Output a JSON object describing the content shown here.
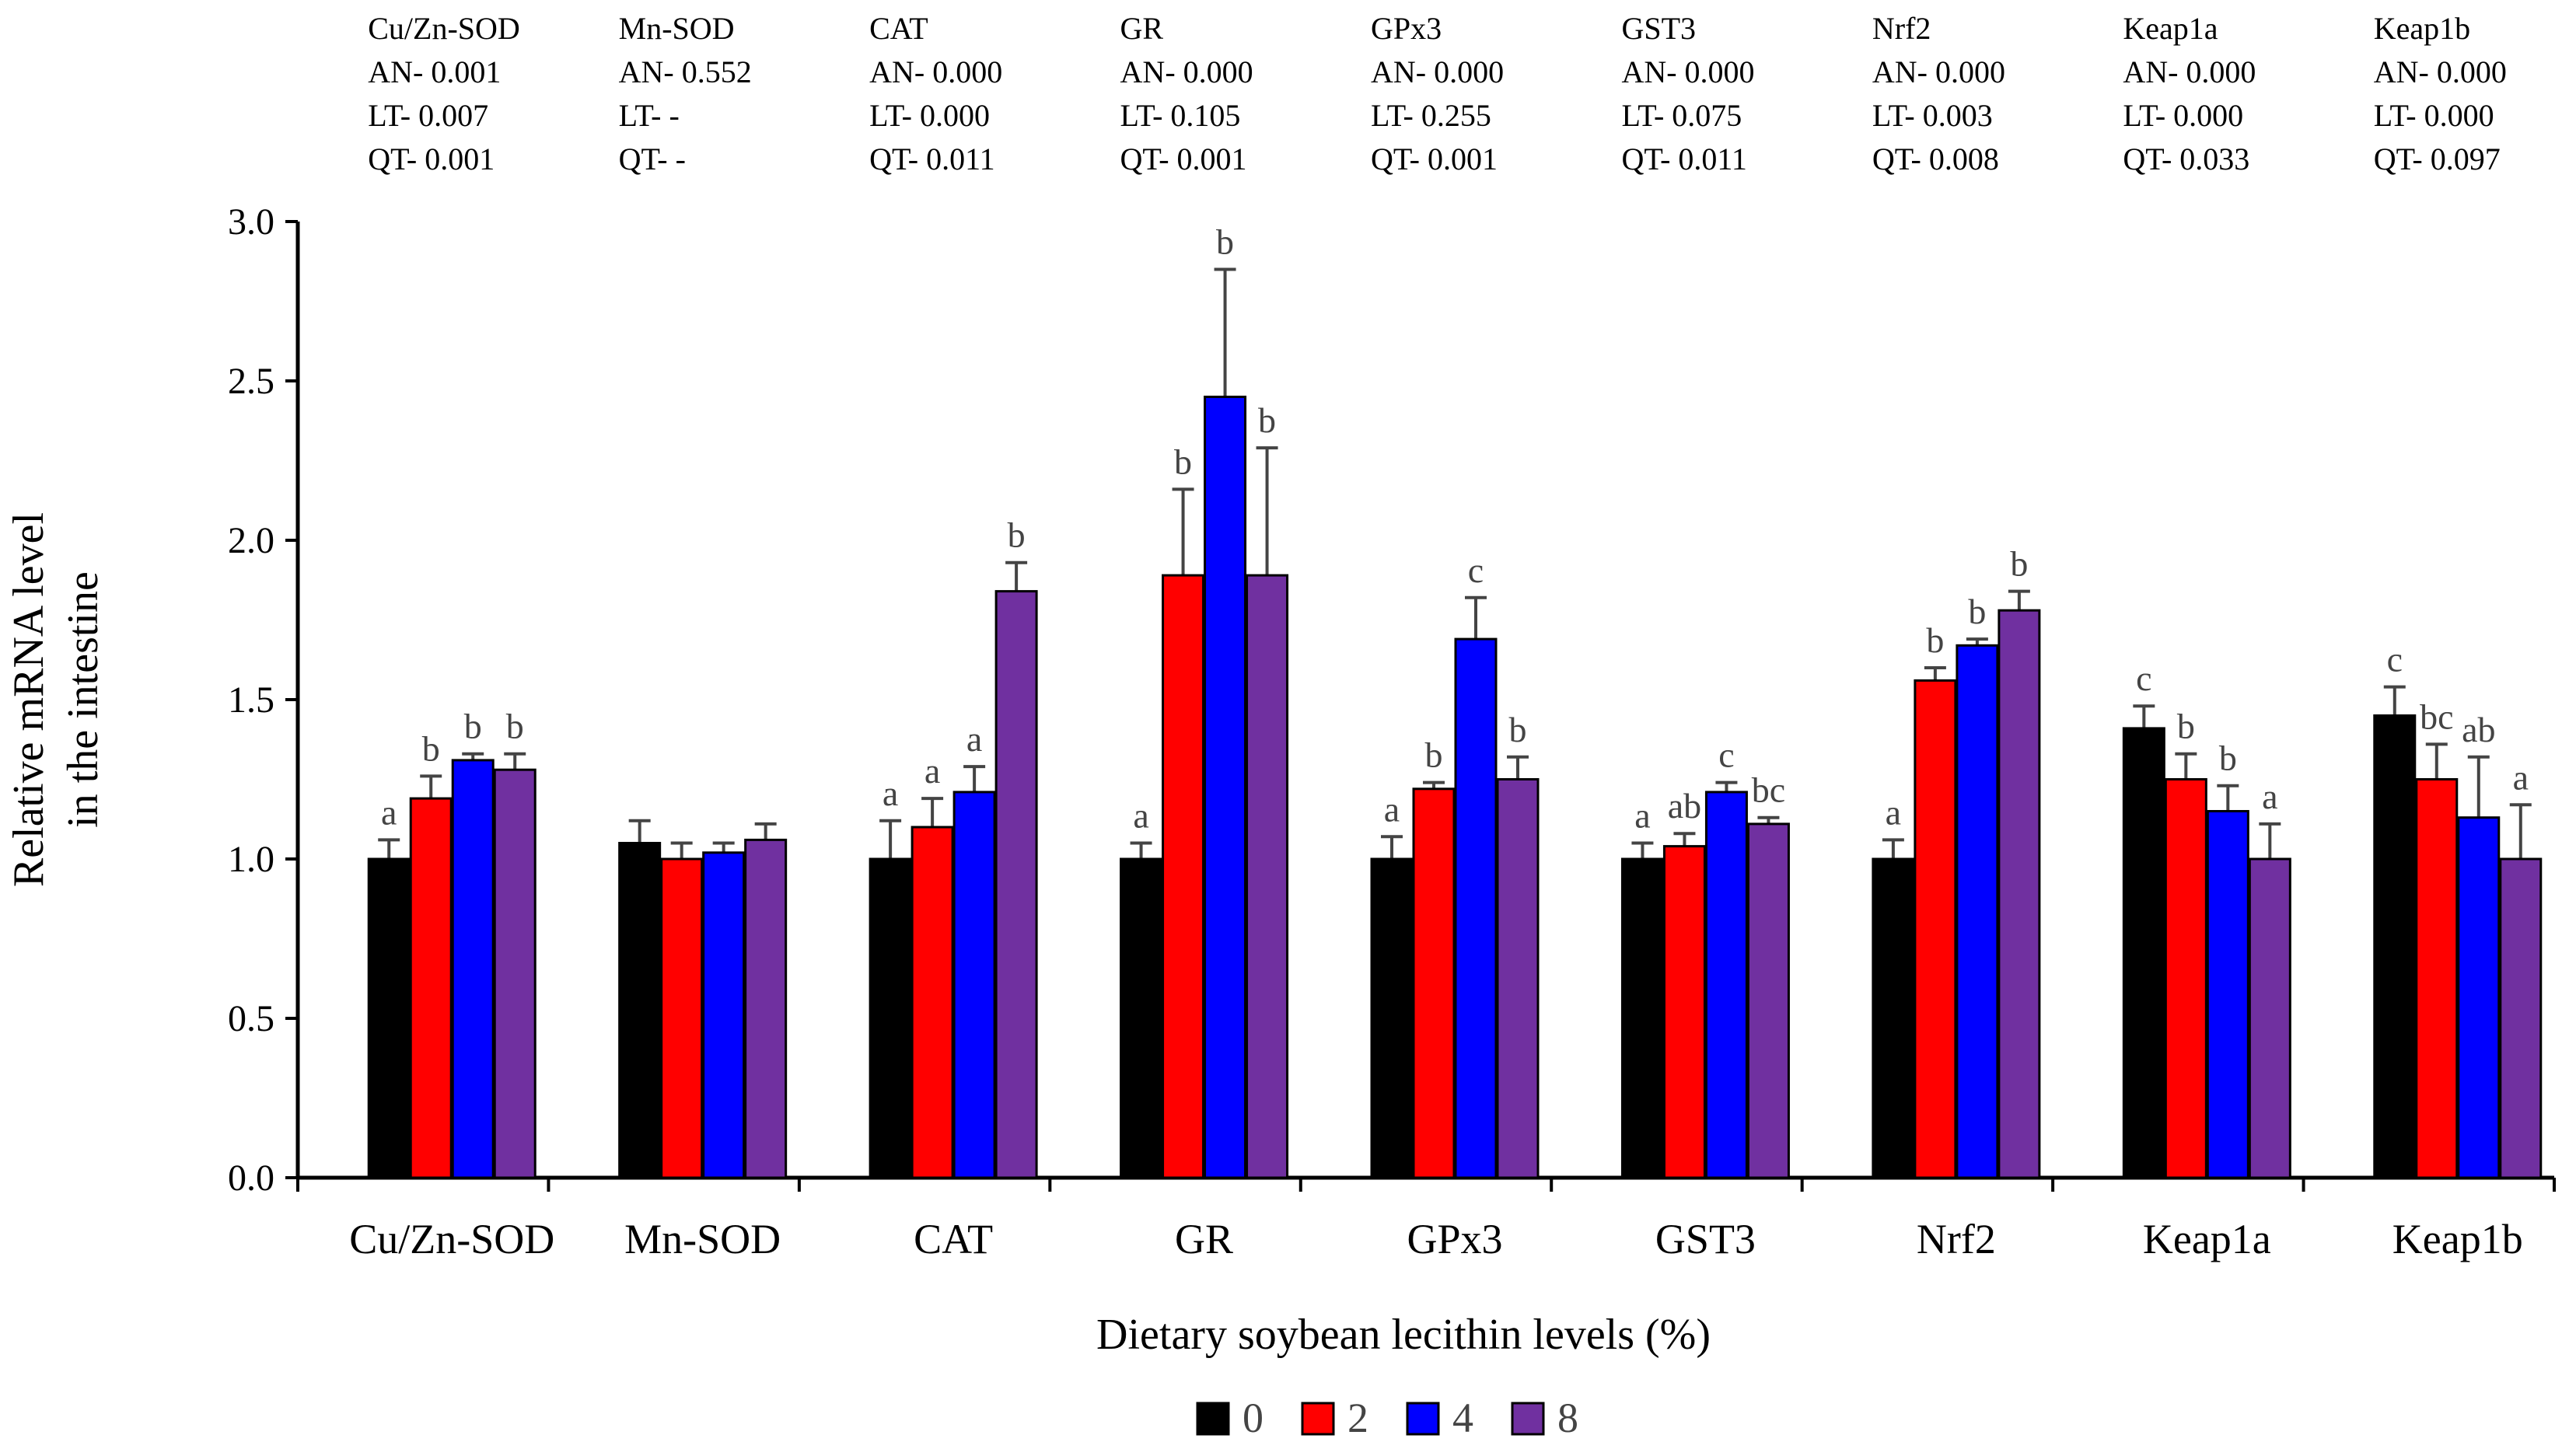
{
  "chart_data": {
    "type": "bar",
    "title": "",
    "xlabel": "Dietary soybean lecithin levels (%)",
    "ylabel": "Relative mRNA level in the intestine",
    "ylabel_lines": [
      "Relative mRNA level",
      "in the intestine"
    ],
    "ylim": [
      0,
      3.0
    ],
    "yticks": [
      "0.0",
      "0.5",
      "1.0",
      "1.5",
      "2.0",
      "2.5",
      "3.0"
    ],
    "categories": [
      "Cu/Zn-SOD",
      "Mn-SOD",
      "CAT",
      "GR",
      "GPx3",
      "GST3",
      "Nrf2",
      "Keap1a",
      "Keap1b"
    ],
    "series": [
      {
        "name": "0",
        "color": "#000000",
        "values": [
          1.0,
          1.05,
          1.0,
          1.0,
          1.0,
          1.0,
          1.0,
          1.41,
          1.45
        ],
        "errors": [
          0.06,
          0.07,
          0.12,
          0.05,
          0.07,
          0.05,
          0.06,
          0.07,
          0.09
        ],
        "letters": [
          "a",
          "",
          "a",
          "a",
          "a",
          "a",
          "a",
          "c",
          "c"
        ]
      },
      {
        "name": "2",
        "color": "#ff0000",
        "values": [
          1.19,
          1.0,
          1.1,
          1.89,
          1.22,
          1.04,
          1.56,
          1.25,
          1.25
        ],
        "errors": [
          0.07,
          0.05,
          0.09,
          0.27,
          0.02,
          0.04,
          0.04,
          0.08,
          0.11
        ],
        "letters": [
          "b",
          "",
          "a",
          "b",
          "b",
          "ab",
          "b",
          "b",
          "bc"
        ]
      },
      {
        "name": "4",
        "color": "#0000ff",
        "values": [
          1.31,
          1.02,
          1.21,
          2.45,
          1.69,
          1.21,
          1.67,
          1.15,
          1.13
        ],
        "errors": [
          0.02,
          0.03,
          0.08,
          0.4,
          0.13,
          0.03,
          0.02,
          0.08,
          0.19
        ],
        "letters": [
          "b",
          "",
          "a",
          "b",
          "c",
          "c",
          "b",
          "b",
          "ab"
        ]
      },
      {
        "name": "8",
        "color": "#7030a0",
        "values": [
          1.28,
          1.06,
          1.84,
          1.89,
          1.25,
          1.11,
          1.78,
          1.0,
          1.0
        ],
        "errors": [
          0.05,
          0.05,
          0.09,
          0.4,
          0.07,
          0.02,
          0.06,
          0.11,
          0.17
        ],
        "letters": [
          "b",
          "",
          "b",
          "b",
          "b",
          "bc",
          "b",
          "a",
          "a"
        ]
      }
    ],
    "stats": [
      {
        "gene": "Cu/Zn-SOD",
        "an": "AN- 0.001",
        "lt": "LT- 0.007",
        "qt": "QT- 0.001"
      },
      {
        "gene": "Mn-SOD",
        "an": "AN- 0.552",
        "lt": "LT-    -",
        "qt": "QT-    -"
      },
      {
        "gene": "CAT",
        "an": "AN- 0.000",
        "lt": "LT- 0.000",
        "qt": "QT- 0.011"
      },
      {
        "gene": "GR",
        "an": "AN- 0.000",
        "lt": "LT- 0.105",
        "qt": "QT- 0.001"
      },
      {
        "gene": "GPx3",
        "an": "AN- 0.000",
        "lt": "LT- 0.255",
        "qt": "QT- 0.001"
      },
      {
        "gene": "GST3",
        "an": "AN- 0.000",
        "lt": "LT- 0.075",
        "qt": "QT- 0.011"
      },
      {
        "gene": "Nrf2",
        "an": "AN- 0.000",
        "lt": "LT- 0.003",
        "qt": "QT- 0.008"
      },
      {
        "gene": "Keap1a",
        "an": "AN- 0.000",
        "lt": "LT- 0.000",
        "qt": "QT- 0.033"
      },
      {
        "gene": "Keap1b",
        "an": "AN- 0.000",
        "lt": "LT- 0.000",
        "qt": "QT- 0.097"
      }
    ],
    "legend": [
      "0",
      "2",
      "4",
      "8"
    ],
    "legend_position": "bottom-center"
  }
}
